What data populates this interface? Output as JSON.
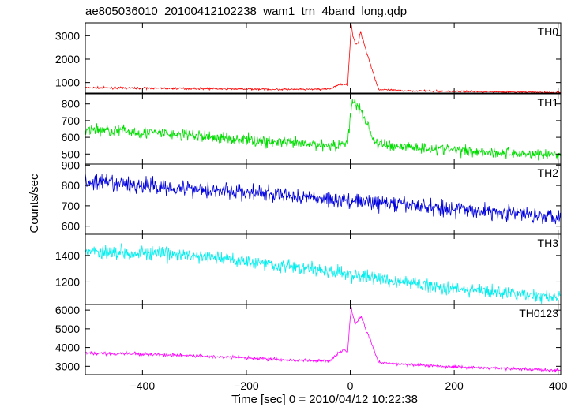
{
  "chart_data": {
    "type": "line",
    "title": "ae805036010_20100412102238_wam1_trn_4band_long.qdp",
    "xlabel": "Time [sec] 0 = 2010/04/12 10:22:38",
    "ylabel": "Counts/sec",
    "xlim": [
      -510,
      405
    ],
    "xticks": [
      -400,
      -200,
      0,
      200,
      400
    ],
    "xtick_labels": [
      "−400",
      "−200",
      "0",
      "200",
      "400"
    ],
    "grid": false,
    "panels": [
      {
        "label": "TH0",
        "color": "#ff0000",
        "ylim": [
          550,
          3550
        ],
        "yticks": [
          1000,
          2000,
          3000
        ],
        "ytick_labels": [
          "1000",
          "2000",
          "3000"
        ],
        "x": [
          -510,
          -450,
          -400,
          -300,
          -200,
          -100,
          -40,
          -25,
          -15,
          -5,
          0,
          2,
          5,
          10,
          15,
          20,
          25,
          30,
          40,
          50,
          55,
          100,
          200,
          300,
          400
        ],
        "y": [
          780,
          770,
          760,
          740,
          720,
          700,
          720,
          880,
          950,
          900,
          2800,
          3450,
          3000,
          2600,
          2700,
          3150,
          2800,
          2400,
          1700,
          1000,
          700,
          650,
          620,
          600,
          570
        ]
      },
      {
        "label": "TH1",
        "color": "#00dd00",
        "ylim": [
          440,
          860
        ],
        "yticks": [
          500,
          600,
          700,
          800
        ],
        "ytick_labels": [
          "500",
          "600",
          "700",
          "800"
        ],
        "x": [
          -510,
          -400,
          -300,
          -200,
          -100,
          -20,
          -5,
          0,
          5,
          10,
          15,
          20,
          30,
          40,
          50,
          100,
          200,
          300,
          400
        ],
        "y": [
          650,
          630,
          610,
          585,
          560,
          550,
          580,
          720,
          820,
          790,
          780,
          760,
          700,
          620,
          560,
          545,
          525,
          505,
          495
        ]
      },
      {
        "label": "TH2",
        "color": "#0000dd",
        "ylim": [
          560,
          905
        ],
        "yticks": [
          600,
          700,
          800,
          900
        ],
        "ytick_labels": [
          "600",
          "700",
          "800",
          "900"
        ],
        "x": [
          -510,
          -400,
          -300,
          -200,
          -100,
          0,
          100,
          200,
          300,
          400
        ],
        "y": [
          815,
          800,
          785,
          765,
          745,
          725,
          705,
          685,
          665,
          650
        ]
      },
      {
        "label": "TH3",
        "color": "#00eeee",
        "ylim": [
          1030,
          1560
        ],
        "yticks": [
          1200,
          1400
        ],
        "ytick_labels": [
          "1200",
          "1400"
        ],
        "x": [
          -510,
          -400,
          -300,
          -200,
          -100,
          0,
          100,
          200,
          300,
          400
        ],
        "y": [
          1435,
          1420,
          1395,
          1360,
          1310,
          1255,
          1200,
          1150,
          1115,
          1080
        ]
      },
      {
        "label": "TH0123",
        "color": "#ff00ff",
        "ylim": [
          2550,
          6300
        ],
        "yticks": [
          3000,
          4000,
          5000,
          6000
        ],
        "ytick_labels": [
          "3000",
          "4000",
          "5000",
          "6000"
        ],
        "x": [
          -510,
          -400,
          -300,
          -200,
          -100,
          -40,
          -25,
          -15,
          -5,
          0,
          2,
          5,
          10,
          15,
          20,
          25,
          30,
          40,
          50,
          55,
          100,
          200,
          300,
          400
        ],
        "y": [
          3700,
          3650,
          3550,
          3450,
          3300,
          3300,
          3650,
          3900,
          3800,
          5600,
          6200,
          5700,
          5300,
          5400,
          5700,
          5400,
          5000,
          4300,
          3500,
          3200,
          3100,
          2980,
          2880,
          2780
        ]
      }
    ]
  }
}
